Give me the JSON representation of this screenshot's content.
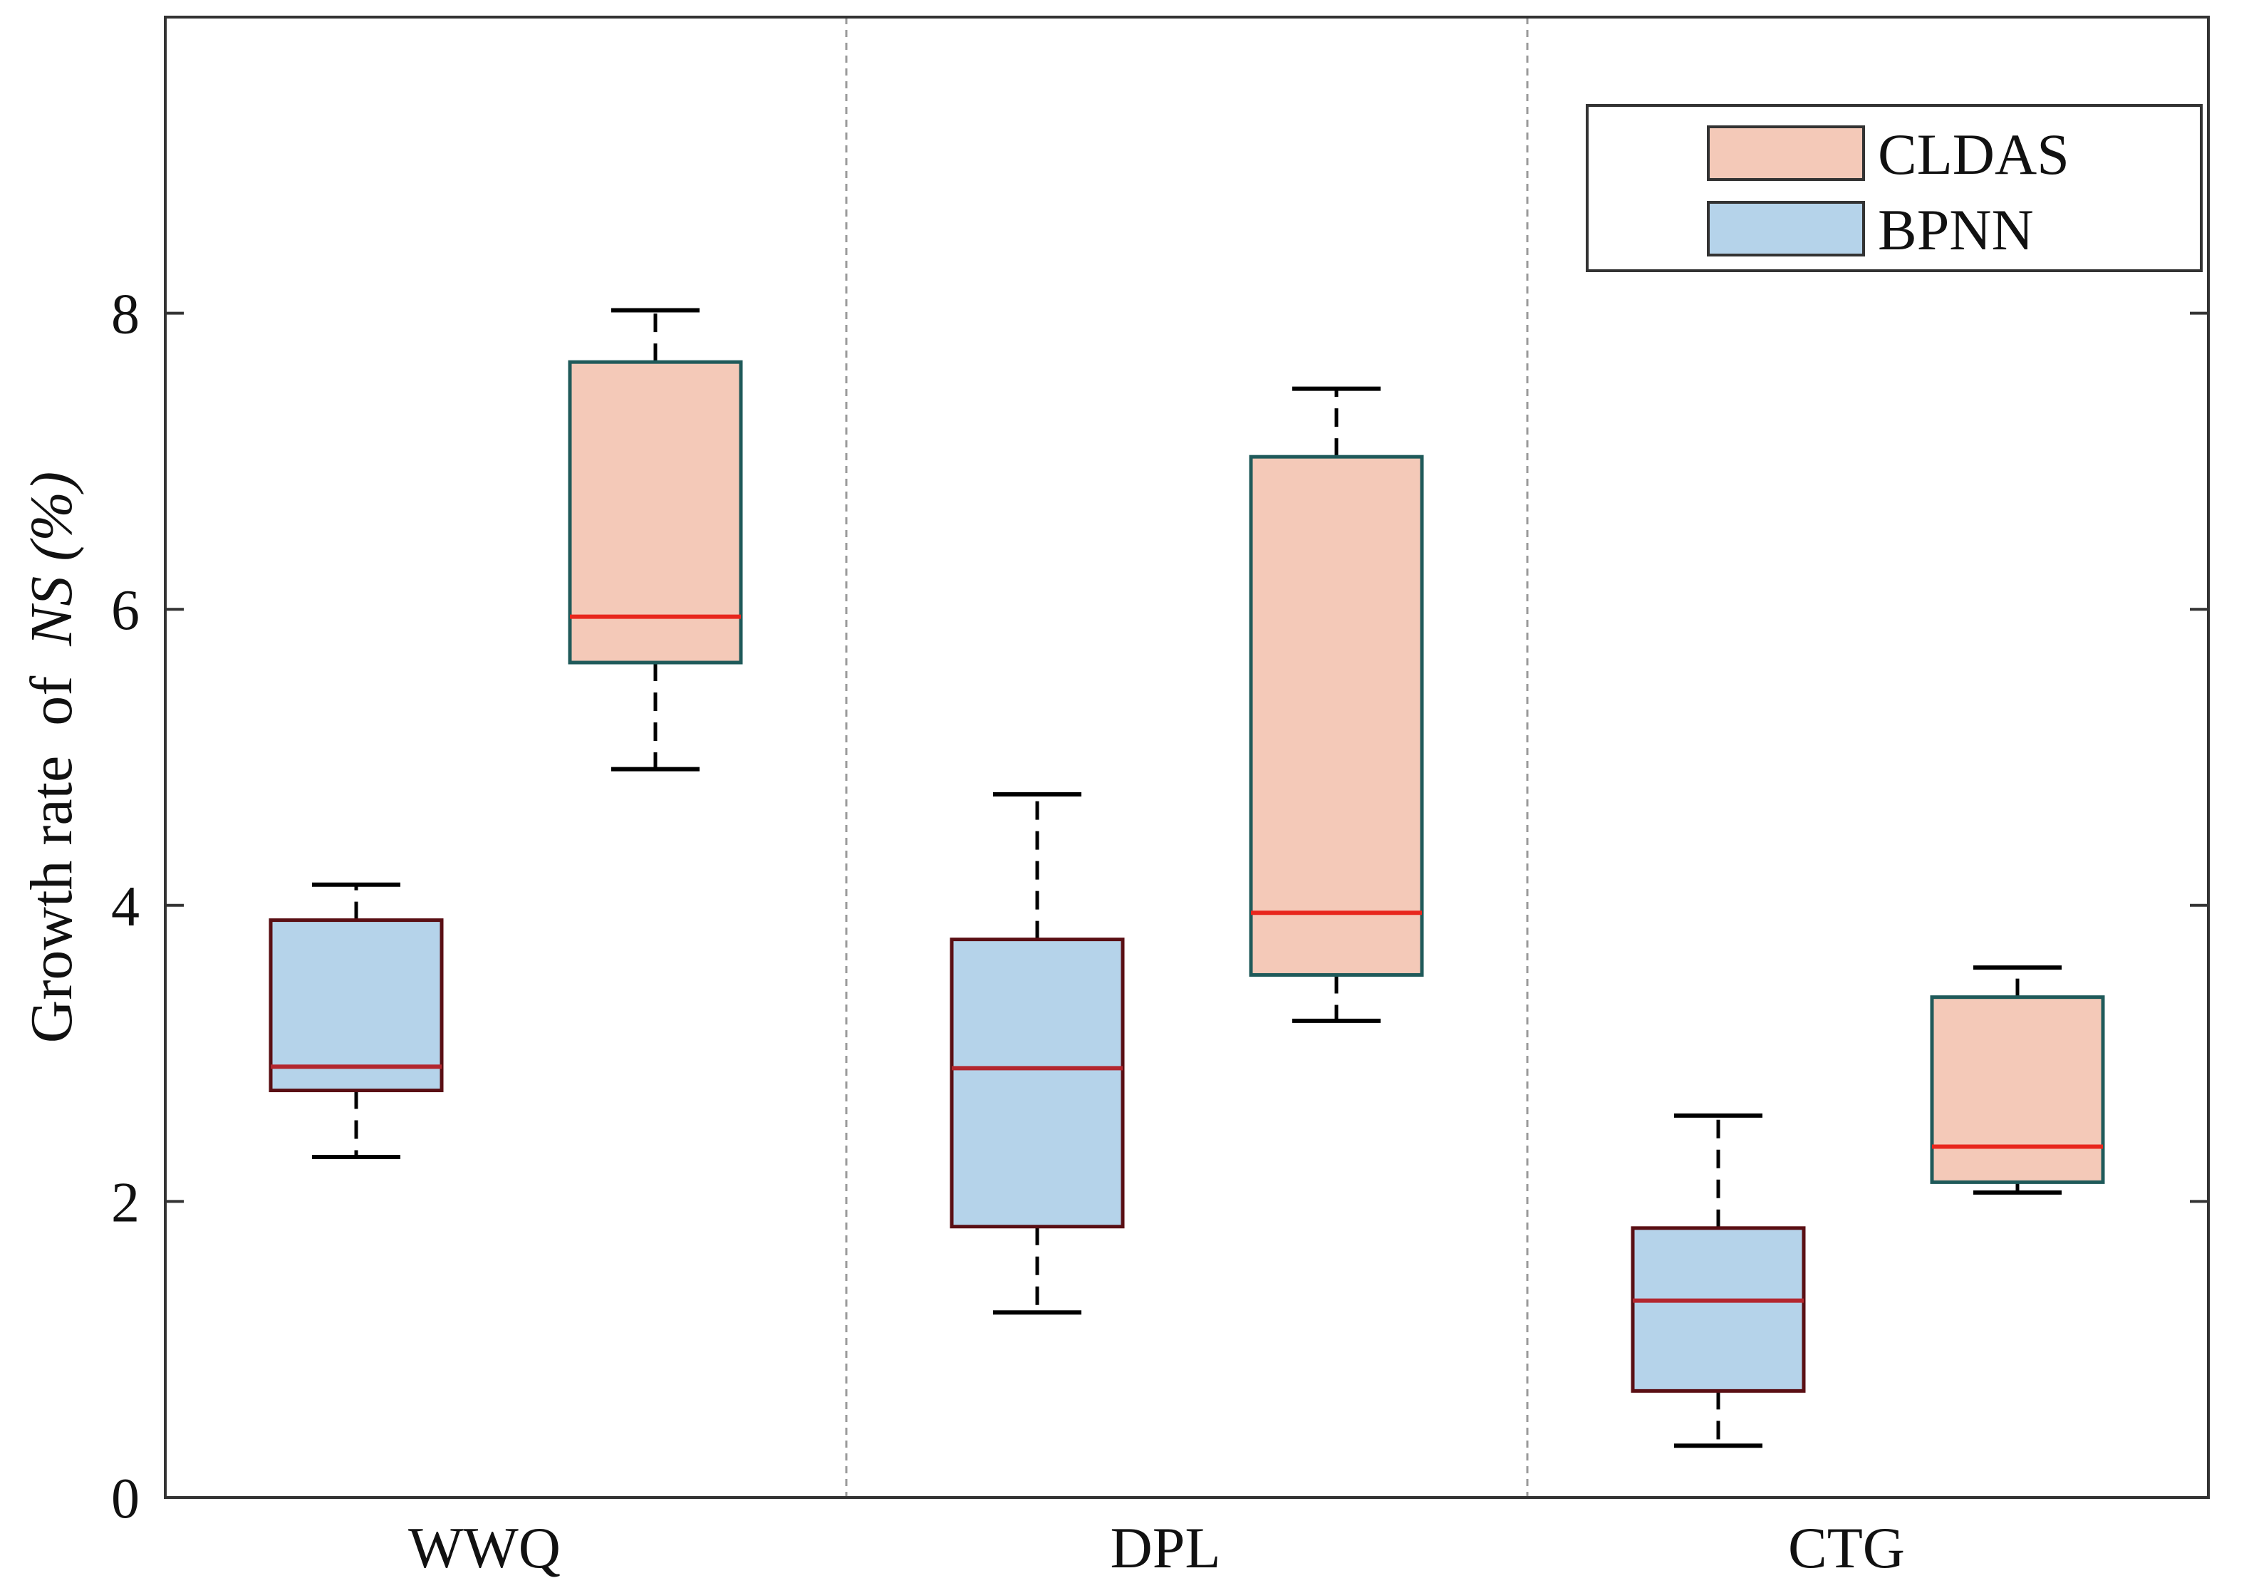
{
  "chart_data": {
    "type": "box",
    "title": "",
    "xlabel": "",
    "ylabel": {
      "prefix": "Growth rate  of  ",
      "italic": "NS",
      "suffix": " (%)"
    },
    "ylim": [
      0,
      10
    ],
    "yticks": [
      0,
      2,
      4,
      6,
      8
    ],
    "grid": false,
    "legend_position": "top-right",
    "categories": [
      "WWQ",
      "DPL",
      "CTG"
    ],
    "series": [
      {
        "name": "CLDAS",
        "fill": "#f4c9b8",
        "edge": "#1f5a5a",
        "median_color": "#e8261c",
        "boxes": [
          {
            "whisker_low": 4.92,
            "q1": 5.64,
            "median": 5.95,
            "q3": 7.67,
            "whisker_high": 8.02
          },
          {
            "whisker_low": 3.22,
            "q1": 3.53,
            "median": 3.95,
            "q3": 7.03,
            "whisker_high": 7.49
          },
          {
            "whisker_low": 2.06,
            "q1": 2.13,
            "median": 2.37,
            "q3": 3.38,
            "whisker_high": 3.58
          }
        ]
      },
      {
        "name": "BPNN",
        "fill": "#b5d3ea",
        "edge": "#5a0f14",
        "median_color": "#b3262e",
        "boxes": [
          {
            "whisker_low": 2.3,
            "q1": 2.75,
            "median": 2.91,
            "q3": 3.9,
            "whisker_high": 4.14
          },
          {
            "whisker_low": 1.25,
            "q1": 1.83,
            "median": 2.9,
            "q3": 3.77,
            "whisker_high": 4.75
          },
          {
            "whisker_low": 0.35,
            "q1": 0.72,
            "median": 1.33,
            "q3": 1.82,
            "whisker_high": 2.58
          }
        ]
      }
    ]
  }
}
